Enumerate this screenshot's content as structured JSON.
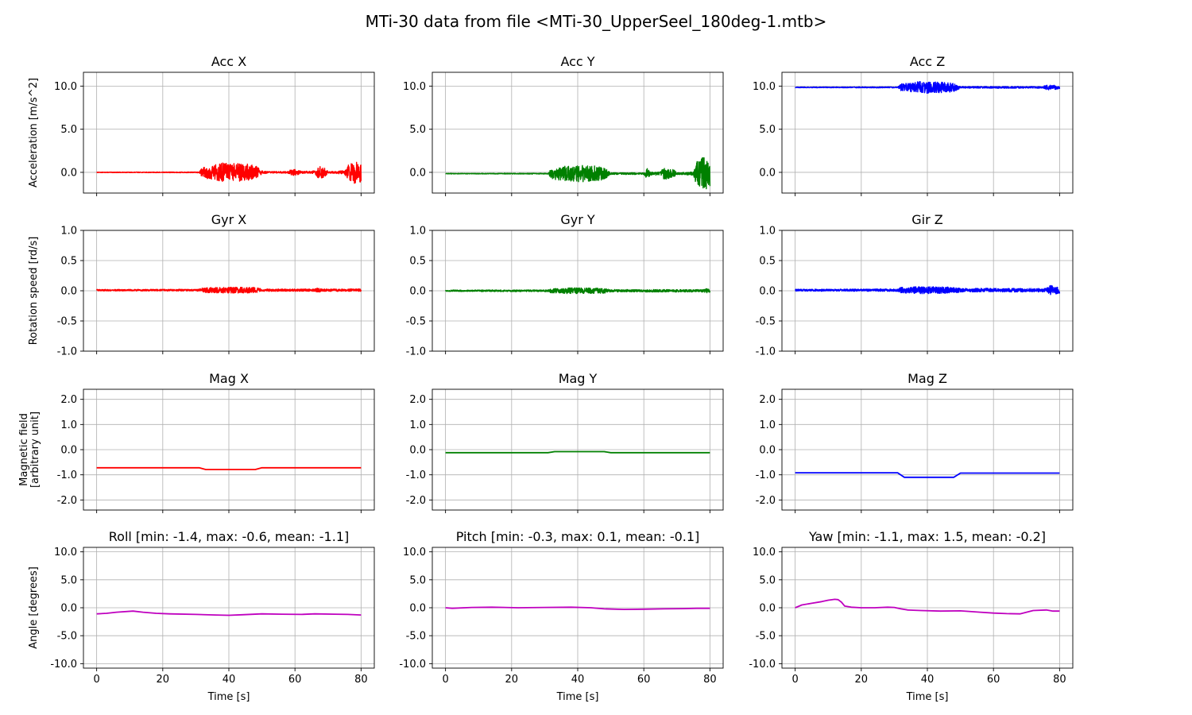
{
  "figure": {
    "suptitle": "MTi-30 data from file <MTi-30_UpperSeel_180deg-1.mtb>"
  },
  "chart_data": [
    {
      "type": "line",
      "title": "Acc X",
      "ylabel": "Acceleration [m/s^2]",
      "xlabel": "",
      "xlim": [
        -4,
        84
      ],
      "ylim": [
        -2.4,
        11.6
      ],
      "yticks": [
        0,
        5,
        10
      ],
      "ytick_labels": [
        "0.0",
        "5.0",
        "10.0"
      ],
      "xticks": [
        0,
        20,
        40,
        60,
        80
      ],
      "color": "#ff0000",
      "grid": true,
      "series": [
        {
          "name": "",
          "kind": "noise",
          "base": 0.0,
          "envelope": [
            [
              0,
              0.03
            ],
            [
              31,
              0.05
            ],
            [
              32,
              0.6
            ],
            [
              38,
              1.1
            ],
            [
              45,
              1.0
            ],
            [
              48,
              0.8
            ],
            [
              50,
              0.2
            ],
            [
              52,
              0.1
            ],
            [
              58,
              0.1
            ],
            [
              59,
              0.4
            ],
            [
              61,
              0.3
            ],
            [
              62,
              0.1
            ],
            [
              66,
              0.2
            ],
            [
              67,
              0.7
            ],
            [
              69,
              0.6
            ],
            [
              70,
              0.1
            ],
            [
              75,
              0.2
            ],
            [
              76,
              0.9
            ],
            [
              78,
              1.3
            ],
            [
              80,
              1.1
            ]
          ]
        }
      ]
    },
    {
      "type": "line",
      "title": "Acc Y",
      "ylabel": "",
      "xlabel": "",
      "xlim": [
        -4,
        84
      ],
      "ylim": [
        -2.4,
        11.6
      ],
      "yticks": [
        0,
        5,
        10
      ],
      "ytick_labels": [
        "0.0",
        "5.0",
        "10.0"
      ],
      "xticks": [
        0,
        20,
        40,
        60,
        80
      ],
      "color": "#008000",
      "grid": true,
      "series": [
        {
          "name": "",
          "kind": "noise",
          "base": -0.15,
          "envelope": [
            [
              0,
              0.03
            ],
            [
              31,
              0.05
            ],
            [
              32,
              0.6
            ],
            [
              38,
              1.0
            ],
            [
              45,
              0.9
            ],
            [
              48,
              0.7
            ],
            [
              50,
              0.1
            ],
            [
              60,
              0.1
            ],
            [
              61,
              0.6
            ],
            [
              62,
              0.2
            ],
            [
              65,
              0.2
            ],
            [
              66,
              0.7
            ],
            [
              69,
              0.5
            ],
            [
              70,
              0.1
            ],
            [
              75,
              0.2
            ],
            [
              76,
              1.4
            ],
            [
              78,
              1.9
            ],
            [
              80,
              1.6
            ]
          ]
        }
      ]
    },
    {
      "type": "line",
      "title": "Acc Z",
      "ylabel": "",
      "xlabel": "",
      "xlim": [
        -4,
        84
      ],
      "ylim": [
        -2.4,
        11.6
      ],
      "yticks": [
        0,
        5,
        10
      ],
      "ytick_labels": [
        "0.0",
        "5.0",
        "10.0"
      ],
      "xticks": [
        0,
        20,
        40,
        60,
        80
      ],
      "color": "#0000ff",
      "grid": true,
      "series": [
        {
          "name": "",
          "kind": "noise",
          "base": 9.85,
          "envelope": [
            [
              0,
              0.04
            ],
            [
              31,
              0.06
            ],
            [
              32,
              0.4
            ],
            [
              38,
              0.7
            ],
            [
              45,
              0.6
            ],
            [
              48,
              0.5
            ],
            [
              50,
              0.1
            ],
            [
              75,
              0.1
            ],
            [
              76,
              0.3
            ],
            [
              80,
              0.2
            ]
          ]
        }
      ]
    },
    {
      "type": "line",
      "title": "Gyr X",
      "ylabel": "Rotation speed [rd/s]",
      "xlabel": "",
      "xlim": [
        -4,
        84
      ],
      "ylim": [
        -1.0,
        1.0
      ],
      "yticks": [
        -1,
        -0.5,
        0,
        0.5,
        1
      ],
      "ytick_labels": [
        "-1.0",
        "-0.5",
        "0.0",
        "0.5",
        "1.0"
      ],
      "xticks": [
        0,
        20,
        40,
        60,
        80
      ],
      "color": "#ff0000",
      "grid": true,
      "series": [
        {
          "name": "",
          "kind": "noise",
          "base": 0.01,
          "envelope": [
            [
              0,
              0.012
            ],
            [
              31,
              0.015
            ],
            [
              32,
              0.04
            ],
            [
              38,
              0.05
            ],
            [
              48,
              0.045
            ],
            [
              50,
              0.02
            ],
            [
              66,
              0.02
            ],
            [
              67,
              0.04
            ],
            [
              68,
              0.02
            ],
            [
              80,
              0.02
            ]
          ]
        }
      ]
    },
    {
      "type": "line",
      "title": "Gyr Y",
      "ylabel": "",
      "xlabel": "",
      "xlim": [
        -4,
        84
      ],
      "ylim": [
        -1.0,
        1.0
      ],
      "yticks": [
        -1,
        -0.5,
        0,
        0.5,
        1
      ],
      "ytick_labels": [
        "-1.0",
        "-0.5",
        "0.0",
        "0.5",
        "1.0"
      ],
      "xticks": [
        0,
        20,
        40,
        60,
        80
      ],
      "color": "#008000",
      "grid": true,
      "series": [
        {
          "name": "",
          "kind": "noise",
          "base": 0.0,
          "envelope": [
            [
              0,
              0.012
            ],
            [
              31,
              0.015
            ],
            [
              32,
              0.035
            ],
            [
              38,
              0.05
            ],
            [
              48,
              0.04
            ],
            [
              50,
              0.02
            ],
            [
              78,
              0.02
            ],
            [
              79,
              0.04
            ],
            [
              80,
              0.03
            ]
          ]
        }
      ]
    },
    {
      "type": "line",
      "title": "Gir Z",
      "ylabel": "",
      "xlabel": "",
      "xlim": [
        -4,
        84
      ],
      "ylim": [
        -1.0,
        1.0
      ],
      "yticks": [
        -1,
        -0.5,
        0,
        0.5,
        1
      ],
      "ytick_labels": [
        "-1.0",
        "-0.5",
        "0.0",
        "0.5",
        "1.0"
      ],
      "xticks": [
        0,
        20,
        40,
        60,
        80
      ],
      "color": "#0000ff",
      "grid": true,
      "series": [
        {
          "name": "",
          "kind": "noise",
          "base": 0.01,
          "envelope": [
            [
              0,
              0.015
            ],
            [
              31,
              0.02
            ],
            [
              32,
              0.05
            ],
            [
              38,
              0.06
            ],
            [
              48,
              0.05
            ],
            [
              50,
              0.03
            ],
            [
              76,
              0.03
            ],
            [
              77,
              0.08
            ],
            [
              80,
              0.06
            ]
          ]
        }
      ]
    },
    {
      "type": "line",
      "title": "Mag X",
      "ylabel": "Magnetic field\n[arbitrary unit]",
      "xlabel": "",
      "xlim": [
        -4,
        84
      ],
      "ylim": [
        -2.4,
        2.4
      ],
      "yticks": [
        -2,
        -1,
        0,
        1,
        2
      ],
      "ytick_labels": [
        "-2.0",
        "-1.0",
        "0.0",
        "1.0",
        "2.0"
      ],
      "xticks": [
        0,
        20,
        40,
        60,
        80
      ],
      "color": "#ff0000",
      "grid": true,
      "series": [
        {
          "name": "",
          "kind": "line",
          "x": [
            0,
            31,
            33,
            48,
            50,
            80
          ],
          "y": [
            -0.72,
            -0.72,
            -0.79,
            -0.79,
            -0.72,
            -0.72
          ]
        }
      ]
    },
    {
      "type": "line",
      "title": "Mag Y",
      "ylabel": "",
      "xlabel": "",
      "xlim": [
        -4,
        84
      ],
      "ylim": [
        -2.4,
        2.4
      ],
      "yticks": [
        -2,
        -1,
        0,
        1,
        2
      ],
      "ytick_labels": [
        "-2.0",
        "-1.0",
        "0.0",
        "1.0",
        "2.0"
      ],
      "xticks": [
        0,
        20,
        40,
        60,
        80
      ],
      "color": "#008000",
      "grid": true,
      "series": [
        {
          "name": "",
          "kind": "line",
          "x": [
            0,
            31,
            33,
            48,
            50,
            80
          ],
          "y": [
            -0.12,
            -0.12,
            -0.08,
            -0.08,
            -0.12,
            -0.12
          ]
        }
      ]
    },
    {
      "type": "line",
      "title": "Mag Z",
      "ylabel": "",
      "xlabel": "",
      "xlim": [
        -4,
        84
      ],
      "ylim": [
        -2.4,
        2.4
      ],
      "yticks": [
        -2,
        -1,
        0,
        1,
        2
      ],
      "ytick_labels": [
        "-2.0",
        "-1.0",
        "0.0",
        "1.0",
        "2.0"
      ],
      "xticks": [
        0,
        20,
        40,
        60,
        80
      ],
      "color": "#0000ff",
      "grid": true,
      "series": [
        {
          "name": "",
          "kind": "line",
          "x": [
            0,
            31,
            33,
            48,
            50,
            80
          ],
          "y": [
            -0.92,
            -0.92,
            -1.1,
            -1.1,
            -0.93,
            -0.93
          ]
        }
      ]
    },
    {
      "type": "line",
      "title": "Roll [min: -1.4, max: -0.6, mean: -1.1]",
      "ylabel": "Angle [degrees]",
      "xlabel": "Time [s]",
      "xlim": [
        -4,
        84
      ],
      "ylim": [
        -10.8,
        10.8
      ],
      "yticks": [
        -10,
        -5,
        0,
        5,
        10
      ],
      "ytick_labels": [
        "-10.0",
        "-5.0",
        "0.0",
        "5.0",
        "10.0"
      ],
      "xticks": [
        0,
        20,
        40,
        60,
        80
      ],
      "xtick_labels": [
        "0",
        "20",
        "40",
        "60",
        "80"
      ],
      "color": "#bf00bf",
      "grid": true,
      "series": [
        {
          "name": "",
          "kind": "line",
          "x": [
            0,
            3,
            6,
            11,
            14,
            18,
            22,
            30,
            36,
            40,
            44,
            50,
            56,
            62,
            66,
            72,
            76,
            80
          ],
          "y": [
            -1.1,
            -1.0,
            -0.8,
            -0.6,
            -0.8,
            -1.0,
            -1.1,
            -1.2,
            -1.3,
            -1.35,
            -1.25,
            -1.1,
            -1.15,
            -1.2,
            -1.1,
            -1.15,
            -1.2,
            -1.3
          ]
        }
      ]
    },
    {
      "type": "line",
      "title": "Pitch [min: -0.3, max: 0.1, mean: -0.1]",
      "ylabel": "",
      "xlabel": "Time [s]",
      "xlim": [
        -4,
        84
      ],
      "ylim": [
        -10.8,
        10.8
      ],
      "yticks": [
        -10,
        -5,
        0,
        5,
        10
      ],
      "ytick_labels": [
        "-10.0",
        "-5.0",
        "0.0",
        "5.0",
        "10.0"
      ],
      "xticks": [
        0,
        20,
        40,
        60,
        80
      ],
      "xtick_labels": [
        "0",
        "20",
        "40",
        "60",
        "80"
      ],
      "color": "#bf00bf",
      "grid": true,
      "series": [
        {
          "name": "",
          "kind": "line",
          "x": [
            0,
            2,
            8,
            14,
            22,
            30,
            38,
            44,
            48,
            54,
            60,
            66,
            72,
            76,
            80
          ],
          "y": [
            0.0,
            -0.1,
            0.05,
            0.1,
            0.0,
            0.05,
            0.1,
            0.0,
            -0.2,
            -0.3,
            -0.25,
            -0.2,
            -0.15,
            -0.1,
            -0.1
          ]
        }
      ]
    },
    {
      "type": "line",
      "title": "Yaw [min: -1.1, max: 1.5, mean: -0.2]",
      "ylabel": "",
      "xlabel": "Time [s]",
      "xlim": [
        -4,
        84
      ],
      "ylim": [
        -10.8,
        10.8
      ],
      "yticks": [
        -10,
        -5,
        0,
        5,
        10
      ],
      "ytick_labels": [
        "-10.0",
        "-5.0",
        "0.0",
        "5.0",
        "10.0"
      ],
      "xticks": [
        0,
        20,
        40,
        60,
        80
      ],
      "xtick_labels": [
        "0",
        "20",
        "40",
        "60",
        "80"
      ],
      "color": "#bf00bf",
      "grid": true,
      "series": [
        {
          "name": "",
          "kind": "line",
          "x": [
            0,
            2,
            5,
            8,
            10,
            12,
            13,
            14,
            15,
            17,
            20,
            24,
            28,
            30,
            32,
            34,
            38,
            44,
            50,
            56,
            60,
            64,
            68,
            70,
            72,
            76,
            78,
            80
          ],
          "y": [
            0.0,
            0.5,
            0.8,
            1.1,
            1.35,
            1.5,
            1.45,
            1.0,
            0.3,
            0.1,
            0.0,
            0.0,
            0.1,
            0.05,
            -0.2,
            -0.4,
            -0.5,
            -0.6,
            -0.55,
            -0.8,
            -0.95,
            -1.05,
            -1.1,
            -0.8,
            -0.5,
            -0.4,
            -0.6,
            -0.6
          ]
        }
      ]
    }
  ]
}
